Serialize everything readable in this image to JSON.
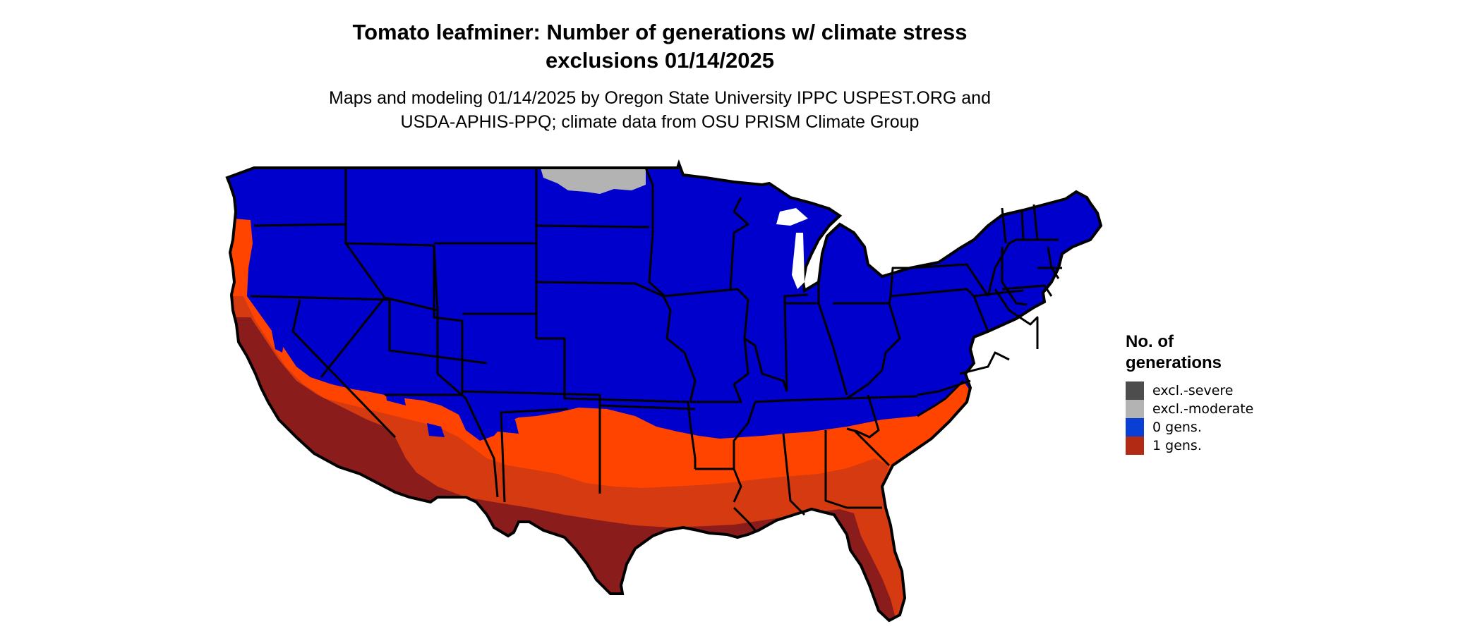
{
  "title_line1": "Tomato leafminer: Number of generations w/ climate stress",
  "title_line2": "exclusions 01/14/2025",
  "subtitle_line1": "Maps and modeling 01/14/2025 by Oregon State University IPPC USPEST.ORG and",
  "subtitle_line2": "USDA-APHIS-PPQ; climate data from OSU PRISM Climate Group",
  "legend": {
    "title_line1": "No. of",
    "title_line2": "generations",
    "items": [
      {
        "label": "excl.-severe",
        "color": "#4d4d4d"
      },
      {
        "label": "excl.-moderate",
        "color": "#b3b3b3"
      },
      {
        "label": "0 gens.",
        "color": "#0a3fd6"
      },
      {
        "label": "1 gens.",
        "color": "#b22a14"
      }
    ]
  },
  "map_colors": {
    "zero_gens": "#0000cc",
    "one_gen_light": "#ff4400",
    "one_gen_mid": "#d63a10",
    "one_gen_dark": "#8b1c1c",
    "excluded_moderate": "#b3b3b3",
    "border": "#000000"
  }
}
